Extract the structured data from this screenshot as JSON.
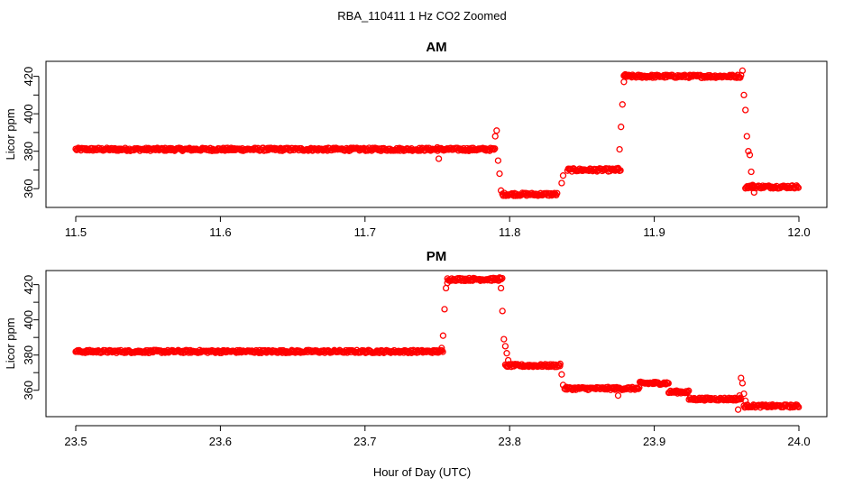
{
  "title": "RBA_110411  1 Hz CO2 Zoomed",
  "xlabel": "Hour of Day (UTC)",
  "colors": {
    "points": "#ff0000",
    "axes": "#000000",
    "background": "#ffffff"
  },
  "chart_data": [
    {
      "type": "scatter",
      "title": "AM",
      "ylabel": "Licor ppm",
      "xlim": [
        11.5,
        12.0
      ],
      "ylim": [
        350,
        428
      ],
      "xticks": [
        "11.5",
        "11.6",
        "11.7",
        "11.8",
        "11.9",
        "12.0"
      ],
      "yticks": [
        "360",
        "380",
        "400",
        "420"
      ],
      "grid": false,
      "segments": [
        {
          "x0": 11.5,
          "x1": 11.79,
          "y": 381
        },
        {
          "x0": 11.795,
          "x1": 11.833,
          "y": 357
        },
        {
          "x0": 11.84,
          "x1": 11.877,
          "y": 370
        },
        {
          "x0": 11.879,
          "x1": 11.96,
          "y": 420
        },
        {
          "x0": 11.963,
          "x1": 12.0,
          "y": 361
        }
      ],
      "points": [
        [
          11.75,
          382
        ],
        [
          11.751,
          376
        ],
        [
          11.79,
          388
        ],
        [
          11.791,
          391
        ],
        [
          11.792,
          375
        ],
        [
          11.793,
          368
        ],
        [
          11.794,
          359
        ],
        [
          11.836,
          363
        ],
        [
          11.837,
          367
        ],
        [
          11.875,
          371
        ],
        [
          11.876,
          381
        ],
        [
          11.877,
          393
        ],
        [
          11.878,
          405
        ],
        [
          11.879,
          417
        ],
        [
          11.88,
          421
        ],
        [
          11.961,
          423
        ],
        [
          11.962,
          410
        ],
        [
          11.963,
          402
        ],
        [
          11.964,
          388
        ],
        [
          11.965,
          380
        ],
        [
          11.966,
          378
        ],
        [
          11.967,
          369
        ],
        [
          11.968,
          362
        ],
        [
          11.969,
          358
        ]
      ]
    },
    {
      "type": "scatter",
      "title": "PM",
      "ylabel": "Licor ppm",
      "xlim": [
        23.5,
        24.0
      ],
      "ylim": [
        345,
        428
      ],
      "xticks": [
        "23.5",
        "23.6",
        "23.7",
        "23.8",
        "23.9",
        "24.0"
      ],
      "yticks": [
        "360",
        "380",
        "400",
        "420"
      ],
      "grid": false,
      "segments": [
        {
          "x0": 23.5,
          "x1": 23.754,
          "y": 382
        },
        {
          "x0": 23.757,
          "x1": 23.795,
          "y": 423
        },
        {
          "x0": 23.797,
          "x1": 23.835,
          "y": 374
        },
        {
          "x0": 23.838,
          "x1": 23.89,
          "y": 361
        },
        {
          "x0": 23.89,
          "x1": 23.91,
          "y": 364
        },
        {
          "x0": 23.91,
          "x1": 23.924,
          "y": 359
        },
        {
          "x0": 23.924,
          "x1": 23.96,
          "y": 355
        },
        {
          "x0": 23.962,
          "x1": 24.0,
          "y": 351
        }
      ],
      "points": [
        [
          23.753,
          384
        ],
        [
          23.754,
          391
        ],
        [
          23.755,
          406
        ],
        [
          23.756,
          418
        ],
        [
          23.757,
          421
        ],
        [
          23.793,
          424
        ],
        [
          23.794,
          418
        ],
        [
          23.795,
          405
        ],
        [
          23.796,
          389
        ],
        [
          23.797,
          385
        ],
        [
          23.798,
          381
        ],
        [
          23.799,
          377
        ],
        [
          23.835,
          375
        ],
        [
          23.836,
          369
        ],
        [
          23.837,
          363
        ],
        [
          23.875,
          357
        ],
        [
          23.958,
          349
        ],
        [
          23.959,
          357
        ],
        [
          23.96,
          367
        ],
        [
          23.961,
          364
        ],
        [
          23.962,
          358
        ],
        [
          23.963,
          354
        ]
      ]
    }
  ]
}
